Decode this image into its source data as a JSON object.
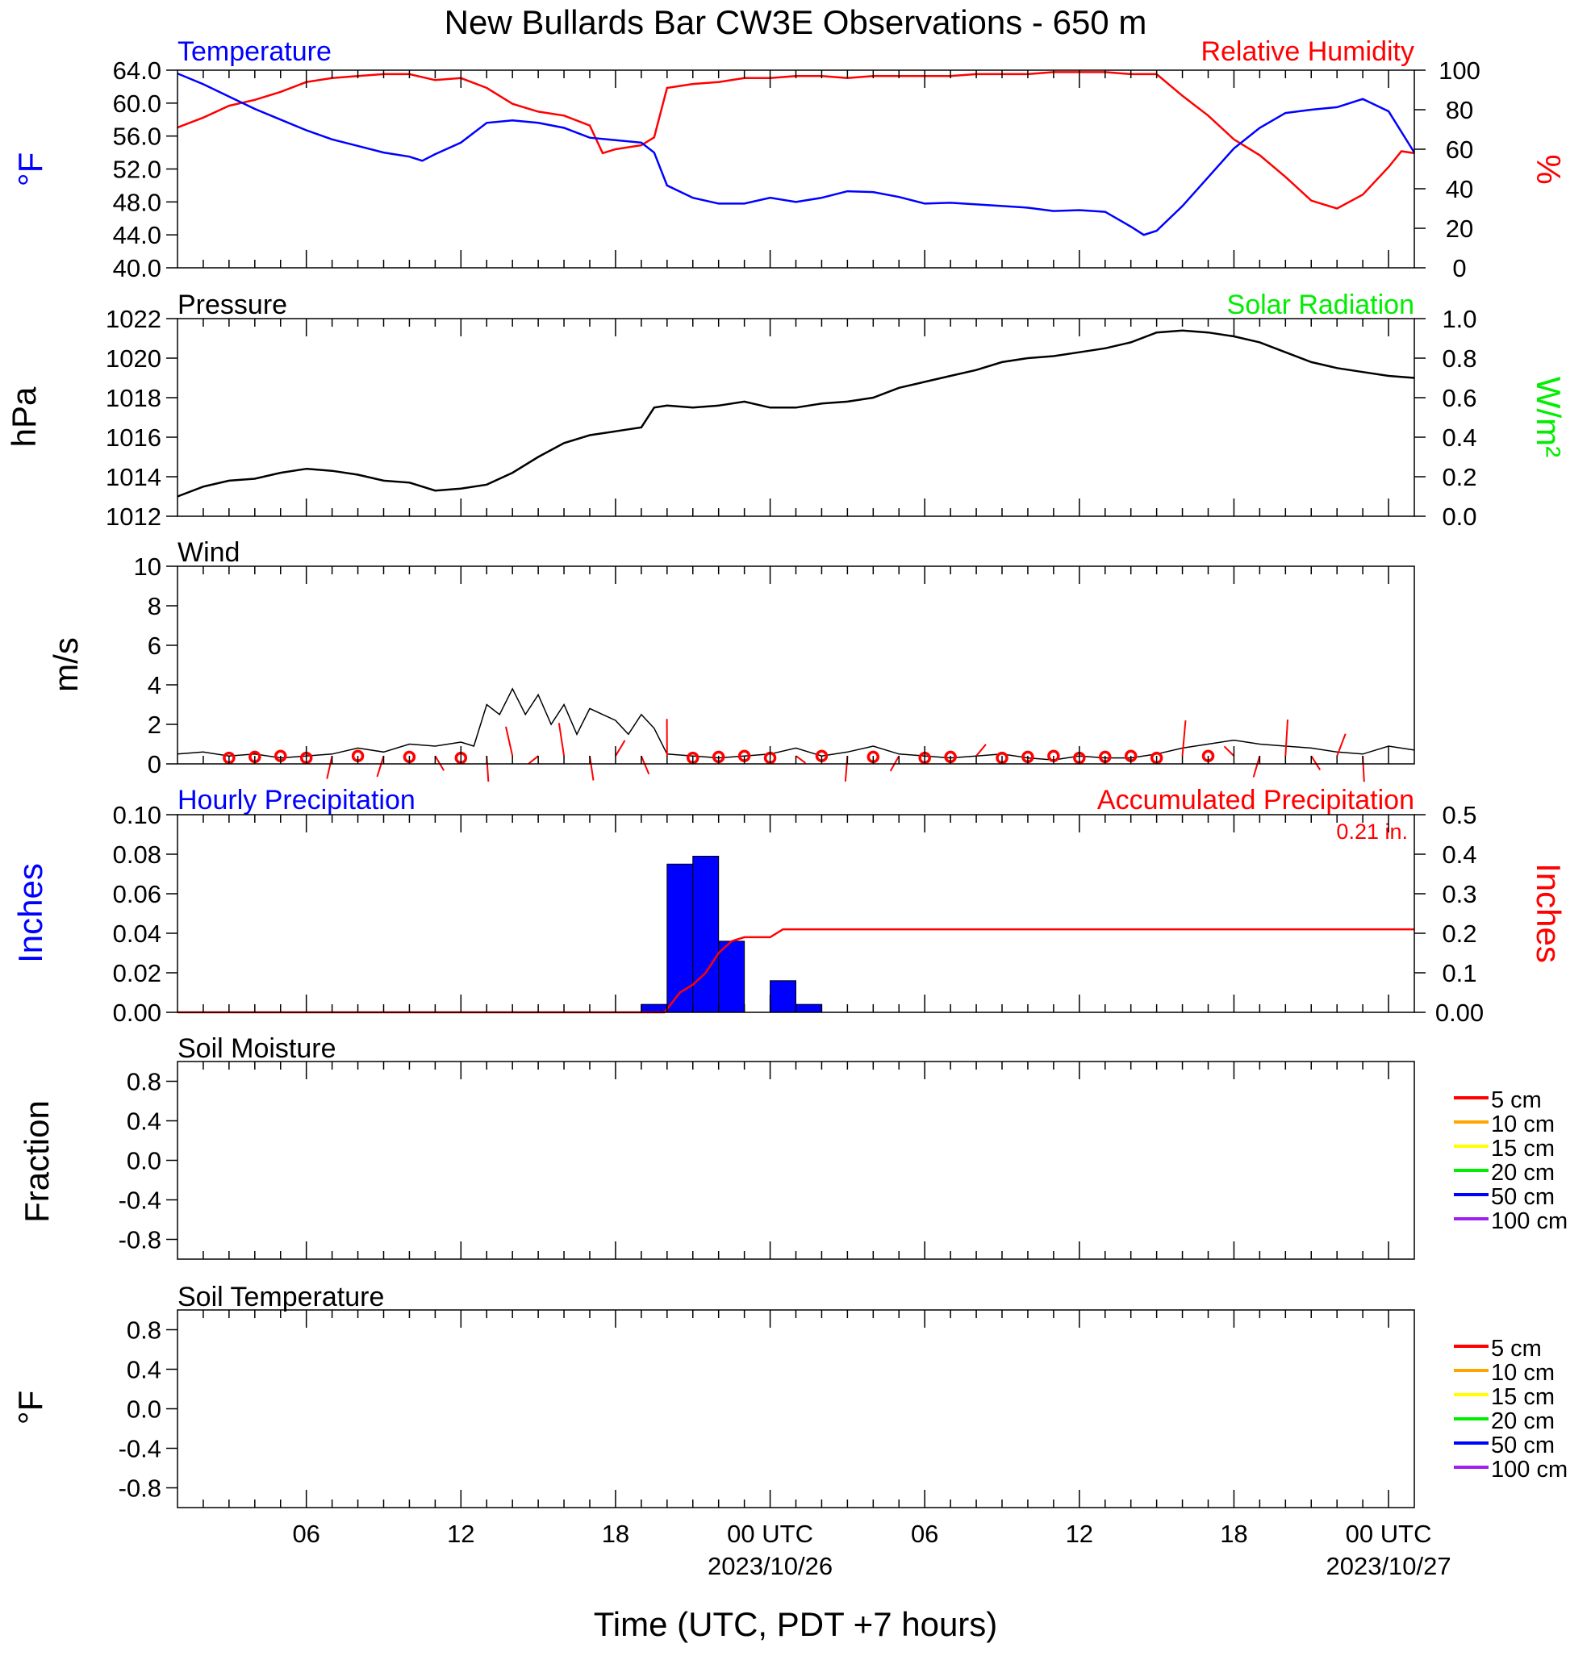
{
  "title": "New Bullards Bar CW3E Observations - 650 m",
  "colors": {
    "temperature": "#0000ff",
    "humidity": "#ff0000",
    "pressure": "#000000",
    "solar": "#00ee00",
    "wind": "#000000",
    "wind_barb": "#ff0000",
    "hourly_precip": "#0000ff",
    "accum_precip": "#ff0000",
    "legend_lines": [
      "#ff0000",
      "#ffa500",
      "#ffff00",
      "#00ee00",
      "#0000ff",
      "#a020f0"
    ]
  },
  "time_axis": {
    "xlabel": "Time (UTC, PDT +7 hours)",
    "range_hours": [
      0,
      48
    ],
    "ticks": [
      {
        "h": 5,
        "label": "06",
        "sub": ""
      },
      {
        "h": 11,
        "label": "12",
        "sub": ""
      },
      {
        "h": 17,
        "label": "18",
        "sub": ""
      },
      {
        "h": 23,
        "label": "00 UTC",
        "sub": "2023/10/26"
      },
      {
        "h": 29,
        "label": "06",
        "sub": ""
      },
      {
        "h": 35,
        "label": "12",
        "sub": ""
      },
      {
        "h": 41,
        "label": "18",
        "sub": ""
      },
      {
        "h": 47,
        "label": "00 UTC",
        "sub": "2023/10/27"
      }
    ]
  },
  "panels": {
    "temp_rh": {
      "left_title": "Temperature",
      "right_title": "Relative Humidity",
      "ylabel_left": "°F",
      "ylabel_right": "%",
      "left_ticks": [
        "40.0",
        "44.0",
        "48.0",
        "52.0",
        "56.0",
        "60.0",
        "64.0"
      ],
      "right_ticks": [
        "0",
        "20",
        "40",
        "60",
        "80",
        "100"
      ]
    },
    "pressure": {
      "left_title": "Pressure",
      "right_title": "Solar Radiation",
      "ylabel_left": "hPa",
      "ylabel_right": "W/m²",
      "left_ticks": [
        "1012",
        "1014",
        "1016",
        "1018",
        "1020",
        "1022"
      ],
      "right_ticks": [
        "0.0",
        "0.2",
        "0.4",
        "0.6",
        "0.8",
        "1.0"
      ]
    },
    "wind": {
      "left_title": "Wind",
      "ylabel_left": "m/s",
      "left_ticks": [
        "0",
        "2",
        "4",
        "6",
        "8",
        "10"
      ]
    },
    "precip": {
      "left_title": "Hourly Precipitation",
      "right_title": "Accumulated Precipitation",
      "total_label": "0.21 in.",
      "ylabel_left": "Inches",
      "ylabel_right": "Inches",
      "left_ticks": [
        "0.00",
        "0.02",
        "0.04",
        "0.06",
        "0.08",
        "0.10"
      ],
      "right_ticks": [
        "0.00",
        "0.1",
        "0.2",
        "0.3",
        "0.4",
        "0.5"
      ]
    },
    "soil_moisture": {
      "left_title": "Soil Moisture",
      "ylabel_left": "Fraction",
      "left_ticks": [
        "-0.8",
        "-0.4",
        "0.0",
        "0.4",
        "0.8"
      ],
      "legend": [
        "5 cm",
        "10 cm",
        "15 cm",
        "20 cm",
        "50 cm",
        "100 cm"
      ]
    },
    "soil_temp": {
      "left_title": "Soil Temperature",
      "ylabel_left": "°F",
      "left_ticks": [
        "-0.8",
        "-0.4",
        "0.0",
        "0.4",
        "0.8"
      ],
      "legend": [
        "5 cm",
        "10 cm",
        "15 cm",
        "20 cm",
        "50 cm",
        "100 cm"
      ]
    }
  },
  "chart_data": [
    {
      "type": "line",
      "panel": "temp_rh",
      "title": "Temperature",
      "x_unit": "hours from start (UTC)",
      "ylim": [
        40,
        64
      ],
      "x": [
        0,
        1,
        2,
        3,
        4,
        5,
        6,
        7,
        8,
        9,
        9.5,
        10,
        11,
        12,
        13,
        14,
        15,
        16,
        17,
        18,
        18.5,
        19,
        20,
        21,
        22,
        23,
        24,
        25,
        26,
        27,
        28,
        29,
        30,
        31,
        32,
        33,
        34,
        35,
        36,
        37,
        37.5,
        38,
        39,
        40,
        41,
        42,
        43,
        44,
        45,
        46,
        47,
        48
      ],
      "y": [
        63.6,
        62.3,
        60.8,
        59.3,
        58.0,
        56.7,
        55.6,
        54.8,
        54.0,
        53.5,
        53.0,
        53.8,
        55.2,
        57.6,
        57.9,
        57.6,
        57.0,
        55.8,
        55.5,
        55.2,
        54.0,
        50.0,
        48.5,
        47.8,
        47.8,
        48.5,
        48.0,
        48.5,
        49.3,
        49.2,
        48.6,
        47.8,
        47.9,
        47.7,
        47.5,
        47.3,
        46.9,
        47.0,
        46.8,
        45.0,
        44.0,
        44.5,
        47.5,
        51.0,
        54.5,
        57.0,
        58.8,
        59.2,
        59.5,
        60.5,
        59.0,
        54.0
      ],
      "series": [
        {
          "name": "Temperature"
        }
      ]
    },
    {
      "type": "line",
      "panel": "temp_rh",
      "title": "Relative Humidity",
      "x_unit": "hours from start (UTC)",
      "ylim": [
        0,
        100
      ],
      "x": [
        0,
        1,
        2,
        3,
        4,
        5,
        6,
        7,
        8,
        9,
        10,
        11,
        12,
        13,
        14,
        15,
        16,
        16.5,
        17,
        18,
        18.5,
        19,
        20,
        21,
        22,
        23,
        24,
        25,
        26,
        27,
        28,
        29,
        30,
        31,
        32,
        33,
        34,
        35,
        36,
        37,
        38,
        39,
        40,
        41,
        42,
        43,
        44,
        45,
        46,
        47,
        47.5,
        48
      ],
      "y": [
        71,
        76,
        82,
        85,
        89,
        94,
        96,
        97,
        98,
        98,
        95,
        96,
        91,
        83,
        79,
        77,
        72,
        58,
        60,
        62,
        66,
        91,
        93,
        94,
        96,
        96,
        97,
        97,
        96,
        97,
        97,
        97,
        97,
        98,
        98,
        98,
        99,
        99,
        99,
        98,
        98,
        87,
        77,
        65,
        57,
        46,
        34,
        30,
        37,
        51,
        59,
        58
      ],
      "series": [
        {
          "name": "Relative Humidity"
        }
      ]
    },
    {
      "type": "line",
      "panel": "pressure",
      "title": "Pressure",
      "x_unit": "hours from start (UTC)",
      "ylim": [
        1012,
        1022
      ],
      "x": [
        0,
        1,
        2,
        3,
        4,
        5,
        6,
        7,
        8,
        9,
        10,
        11,
        12,
        13,
        14,
        15,
        16,
        17,
        18,
        18.5,
        19,
        20,
        21,
        22,
        23,
        24,
        25,
        26,
        27,
        28,
        29,
        30,
        31,
        32,
        33,
        34,
        35,
        36,
        37,
        38,
        39,
        40,
        41,
        42,
        43,
        44,
        45,
        46,
        47,
        48
      ],
      "y": [
        1013.0,
        1013.5,
        1013.8,
        1013.9,
        1014.2,
        1014.4,
        1014.3,
        1014.1,
        1013.8,
        1013.7,
        1013.3,
        1013.4,
        1013.6,
        1014.2,
        1015.0,
        1015.7,
        1016.1,
        1016.3,
        1016.5,
        1017.5,
        1017.6,
        1017.5,
        1017.6,
        1017.8,
        1017.5,
        1017.5,
        1017.7,
        1017.8,
        1018.0,
        1018.5,
        1018.8,
        1019.1,
        1019.4,
        1019.8,
        1020.0,
        1020.1,
        1020.3,
        1020.5,
        1020.8,
        1021.3,
        1021.4,
        1021.3,
        1021.1,
        1020.8,
        1020.3,
        1019.8,
        1019.5,
        1019.3,
        1019.1,
        1019.0
      ],
      "series": [
        {
          "name": "Pressure"
        }
      ]
    },
    {
      "type": "line",
      "panel": "wind",
      "title": "Wind",
      "x_unit": "hours from start (UTC)",
      "ylim": [
        0,
        10
      ],
      "x": [
        0,
        1,
        2,
        3,
        4,
        5,
        6,
        7,
        8,
        9,
        10,
        11,
        11.5,
        12,
        12.5,
        13,
        13.5,
        14,
        14.5,
        15,
        15.5,
        16,
        16.5,
        17,
        17.5,
        18,
        18.5,
        19,
        20,
        21,
        22,
        23,
        24,
        25,
        26,
        27,
        28,
        29,
        30,
        31,
        32,
        33,
        34,
        35,
        36,
        37,
        38,
        39,
        40,
        41,
        42,
        43,
        44,
        45,
        46,
        47,
        48
      ],
      "y": [
        0.5,
        0.6,
        0.4,
        0.5,
        0.3,
        0.4,
        0.5,
        0.8,
        0.6,
        1.0,
        0.9,
        1.1,
        0.9,
        3.0,
        2.5,
        3.8,
        2.5,
        3.5,
        2.0,
        3.0,
        1.5,
        2.8,
        2.5,
        2.2,
        1.5,
        2.5,
        1.8,
        0.5,
        0.4,
        0.3,
        0.4,
        0.5,
        0.8,
        0.4,
        0.6,
        0.9,
        0.5,
        0.4,
        0.3,
        0.4,
        0.5,
        0.3,
        0.2,
        0.4,
        0.3,
        0.3,
        0.5,
        0.8,
        1.0,
        1.2,
        1.0,
        0.9,
        0.8,
        0.6,
        0.5,
        0.9,
        0.7
      ],
      "barb_hours": [
        2,
        3,
        4,
        5,
        6,
        7,
        8,
        9,
        10,
        11,
        12,
        13,
        14,
        15,
        16,
        17,
        18,
        19,
        20,
        21,
        22,
        23,
        24,
        25,
        26,
        27,
        28,
        29,
        30,
        31,
        32,
        33,
        34,
        35,
        36,
        37,
        38,
        39,
        40,
        41,
        42,
        43,
        44,
        45,
        46
      ],
      "barb_calm_hours": [
        2,
        3,
        4,
        5,
        7,
        9,
        11,
        20,
        21,
        22,
        23,
        25,
        27,
        29,
        30,
        32,
        33,
        34,
        35,
        36,
        37,
        38,
        40
      ],
      "series": [
        {
          "name": "Wind"
        }
      ]
    },
    {
      "type": "bar",
      "panel": "precip",
      "title": "Hourly Precipitation",
      "x_unit": "hour ending (hours from start, UTC)",
      "ylim": [
        0,
        0.1
      ],
      "x": [
        18,
        19,
        20,
        21,
        22,
        23,
        24
      ],
      "values": [
        0.004,
        0.075,
        0.079,
        0.036,
        0.0,
        0.016,
        0.004
      ],
      "series": [
        {
          "name": "Hourly Precipitation"
        }
      ]
    },
    {
      "type": "line",
      "panel": "precip",
      "title": "Accumulated Precipitation",
      "x_unit": "hours from start (UTC)",
      "ylim": [
        0,
        0.5
      ],
      "x": [
        0,
        18.9,
        19.5,
        20.0,
        20.5,
        21.0,
        21.5,
        22.0,
        23.0,
        23.5,
        24.0,
        48
      ],
      "y": [
        0.0,
        0.0,
        0.05,
        0.07,
        0.1,
        0.15,
        0.18,
        0.19,
        0.19,
        0.21,
        0.21,
        0.21
      ],
      "series": [
        {
          "name": "Accumulated Precipitation"
        }
      ]
    }
  ]
}
